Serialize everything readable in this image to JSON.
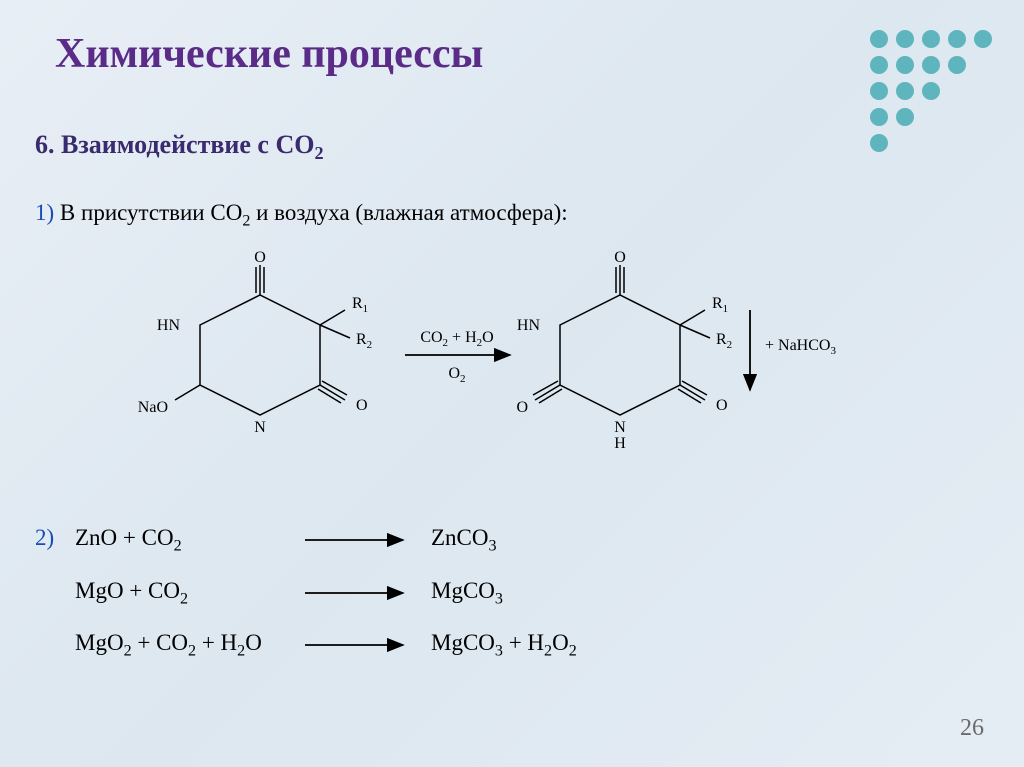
{
  "title": {
    "text": "Химические процессы",
    "color": "#5b2c87"
  },
  "subtitle": {
    "prefix": "6. ",
    "text": "Взаимодействие с CO",
    "sub": "2",
    "color": "#3a2a6e"
  },
  "line1": {
    "num": "1)",
    "text": " В присутствии CO",
    "sub1": "2",
    "text2": " и воздуха (влажная атмосфера):"
  },
  "reaction_arrow": {
    "top": "CO₂ + H₂O",
    "bottom": "O₂"
  },
  "product_extra": "+ NaHCO₃",
  "structure_labels": {
    "O": "O",
    "HN": "HN",
    "R1": "R₁",
    "R2": "R₂",
    "N": "N",
    "NaO": "NaO",
    "H": "H"
  },
  "equations": {
    "num": "2)",
    "rows": [
      {
        "lhs": "ZnO + CO₂",
        "rhs": "ZnCO₃"
      },
      {
        "lhs": "MgO + CO₂",
        "rhs": "MgCO₃"
      },
      {
        "lhs": "MgO₂ + CO₂ + H₂O",
        "rhs": "MgCO₃ + H₂O₂"
      }
    ]
  },
  "pagenum": "26",
  "dots": {
    "colors": [
      "#5fb5bd",
      "#5fb5bd",
      "#5fb5bd",
      "#5fb5bd",
      "#5fb5bd",
      "#5fb5bd",
      "#5fb5bd",
      "#5fb5bd",
      "#5fb5bd",
      "#e8eef5",
      "#5fb5bd",
      "#5fb5bd",
      "#5fb5bd",
      "#e8eef5",
      "#e8eef5",
      "#5fb5bd",
      "#5fb5bd",
      "#e8eef5",
      "#e8eef5",
      "#e8eef5",
      "#5fb5bd",
      "#e8eef5",
      "#e8eef5",
      "#e8eef5",
      "#e8eef5"
    ]
  },
  "colors": {
    "structure_stroke": "#000000",
    "arrow_stroke": "#000000"
  }
}
